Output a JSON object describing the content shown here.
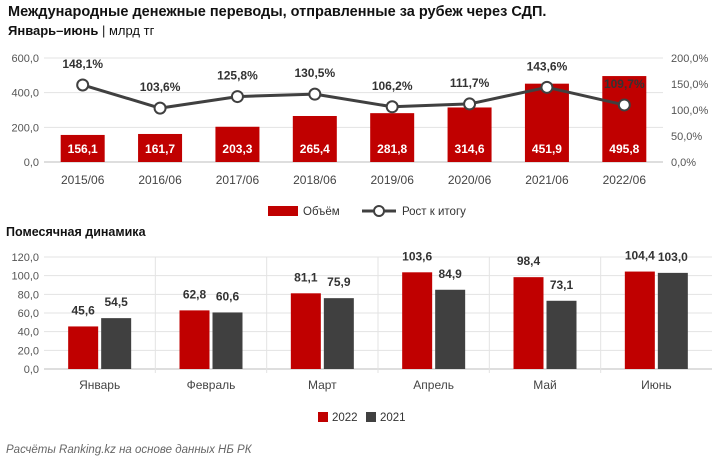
{
  "header": {
    "title": "Международные денежные переводы, отправленные за рубеж через СДП.",
    "period": "Январь–июнь",
    "unit": "млрд тг"
  },
  "footer": {
    "source": "Расчёты Ranking.kz на основе данных НБ РК"
  },
  "monthly_title": "Помесячная динамика",
  "chart_data": [
    {
      "type": "bar",
      "categories": [
        "2015/06",
        "2016/06",
        "2017/06",
        "2018/06",
        "2019/06",
        "2020/06",
        "2021/06",
        "2022/06"
      ],
      "series": [
        {
          "name": "Объём",
          "type": "bar",
          "axis": "left",
          "color": "#c00000",
          "values": [
            156.1,
            161.7,
            203.3,
            265.4,
            281.8,
            314.6,
            451.9,
            495.8
          ],
          "labels": [
            "156,1",
            "161,7",
            "203,3",
            "265,4",
            "281,8",
            "314,6",
            "451,9",
            "495,8"
          ]
        },
        {
          "name": "Рост к итогу",
          "type": "line",
          "axis": "right",
          "color": "#404040",
          "values": [
            148.1,
            103.6,
            125.8,
            130.5,
            106.2,
            111.7,
            143.6,
            109.7
          ],
          "labels": [
            "148,1%",
            "103,6%",
            "125,8%",
            "130,5%",
            "106,2%",
            "111,7%",
            "143,6%",
            "109,7%"
          ]
        }
      ],
      "ylim": [
        0,
        600
      ],
      "yticks": [
        "0,0",
        "200,0",
        "400,0",
        "600,0"
      ],
      "y2lim": [
        0,
        200
      ],
      "y2ticks": [
        "0,0%",
        "50,0%",
        "100,0%",
        "150,0%",
        "200,0%"
      ],
      "grid": true,
      "legend": "bottom"
    },
    {
      "type": "bar",
      "categories": [
        "Январь",
        "Февраль",
        "Март",
        "Апрель",
        "Май",
        "Июнь"
      ],
      "series": [
        {
          "name": "2022",
          "color": "#c00000",
          "values": [
            45.6,
            62.8,
            81.1,
            103.6,
            98.4,
            104.4
          ],
          "labels": [
            "45,6",
            "62,8",
            "81,1",
            "103,6",
            "98,4",
            "104,4"
          ]
        },
        {
          "name": "2021",
          "color": "#404040",
          "values": [
            54.5,
            60.6,
            75.9,
            84.9,
            73.1,
            103.0
          ],
          "labels": [
            "54,5",
            "60,6",
            "75,9",
            "84,9",
            "73,1",
            "103,0"
          ]
        }
      ],
      "ylim": [
        0,
        120
      ],
      "yticks": [
        "0,0",
        "20,0",
        "40,0",
        "60,0",
        "80,0",
        "100,0",
        "120,0"
      ],
      "grid": true,
      "legend": "bottom"
    }
  ]
}
